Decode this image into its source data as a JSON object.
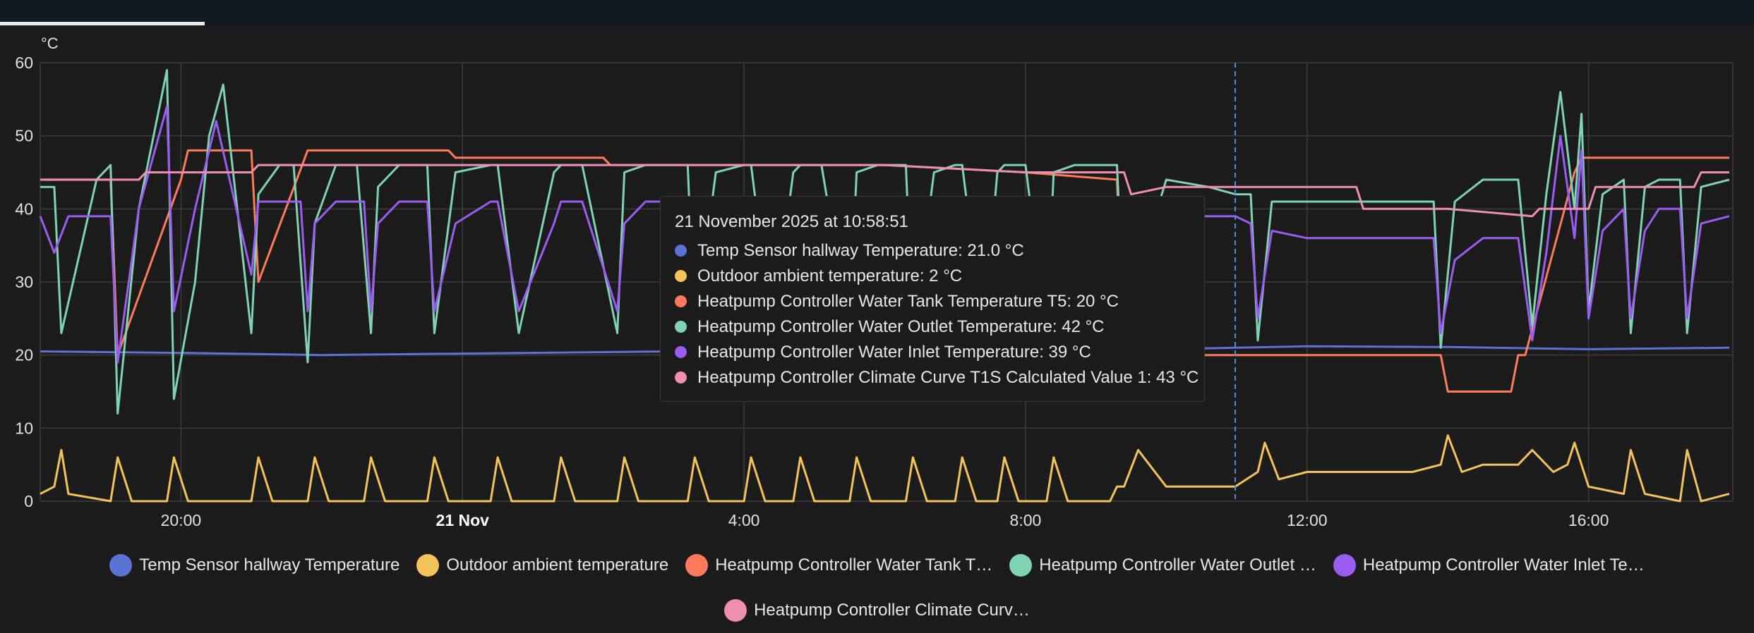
{
  "chart_data": {
    "type": "line",
    "unit": "°C",
    "ylim": [
      0,
      60
    ],
    "yticks": [
      0,
      10,
      20,
      30,
      40,
      50,
      60
    ],
    "x_range_hours": [
      -6.0,
      18.05
    ],
    "xticks": [
      {
        "label": "20:00",
        "h": -4,
        "bold": false
      },
      {
        "label": "21 Nov",
        "h": 0,
        "bold": true
      },
      {
        "label": "4:00",
        "h": 4,
        "bold": false
      },
      {
        "label": "8:00",
        "h": 8,
        "bold": false
      },
      {
        "label": "12:00",
        "h": 12,
        "bold": false
      },
      {
        "label": "16:00",
        "h": 16,
        "bold": false
      }
    ],
    "grid": true,
    "cursor_h": 10.98,
    "series": [
      {
        "name": "Temp Sensor hallway Temperature",
        "color": "#5b73d4",
        "x": [
          -6.0,
          -4.0,
          -2.0,
          0.0,
          2.0,
          4.0,
          6.0,
          8.0,
          10.0,
          11.0,
          12.0,
          14.0,
          16.0,
          18.0
        ],
        "y": [
          20.5,
          20.3,
          20.0,
          20.2,
          20.4,
          20.6,
          20.6,
          20.7,
          20.8,
          21.0,
          21.2,
          21.1,
          20.8,
          21.0
        ]
      },
      {
        "name": "Outdoor ambient temperature",
        "color": "#f4c25b",
        "x": [
          -6.0,
          -5.8,
          -5.7,
          -5.6,
          -5.0,
          -4.9,
          -4.7,
          -4.2,
          -4.1,
          -3.9,
          -3.0,
          -2.9,
          -2.7,
          -2.2,
          -2.1,
          -1.9,
          -1.4,
          -1.3,
          -1.1,
          -0.5,
          -0.4,
          -0.2,
          0.4,
          0.5,
          0.7,
          1.3,
          1.4,
          1.6,
          2.2,
          2.3,
          2.5,
          3.2,
          3.3,
          3.5,
          4.0,
          4.1,
          4.3,
          4.7,
          4.8,
          5.0,
          5.5,
          5.6,
          5.8,
          6.3,
          6.4,
          6.6,
          7.0,
          7.1,
          7.3,
          7.6,
          7.7,
          7.9,
          8.3,
          8.4,
          8.6,
          9.2,
          9.3,
          9.4,
          9.6,
          10.0,
          10.6,
          10.98,
          11.3,
          11.4,
          11.6,
          12.0,
          13.0,
          13.5,
          13.9,
          14.0,
          14.2,
          14.5,
          15.0,
          15.2,
          15.5,
          15.7,
          15.8,
          16.0,
          16.5,
          16.6,
          16.8,
          17.3,
          17.4,
          17.6,
          18.0
        ],
        "y": [
          1,
          2,
          7,
          1,
          0,
          6,
          0,
          0,
          6,
          0,
          0,
          6,
          0,
          0,
          6,
          0,
          0,
          6,
          0,
          0,
          6,
          0,
          0,
          6,
          0,
          0,
          6,
          0,
          0,
          6,
          0,
          0,
          6,
          0,
          0,
          6,
          0,
          0,
          6,
          0,
          0,
          6,
          0,
          0,
          6,
          0,
          0,
          6,
          0,
          0,
          6,
          0,
          0,
          6,
          0,
          0,
          2,
          2,
          7,
          2,
          2,
          2,
          4,
          8,
          3,
          4,
          4,
          4,
          5,
          9,
          4,
          5,
          5,
          7,
          4,
          5,
          8,
          2,
          1,
          7,
          1,
          0,
          7,
          0,
          1
        ]
      },
      {
        "name": "Heatpump Controller Water Tank Temperature T5",
        "color": "#ff7a5c",
        "x": [
          -6.0,
          -5.0,
          -4.9,
          -4.0,
          -3.9,
          -3.0,
          -2.9,
          -2.2,
          -2.1,
          -0.2,
          -0.1,
          2.0,
          2.1,
          4.0,
          6.0,
          8.0,
          9.3,
          9.4,
          10.0,
          11.0,
          12.0,
          13.0,
          13.9,
          14.0,
          14.9,
          15.0,
          15.1,
          15.8,
          15.9,
          18.0
        ],
        "y": [
          44,
          44,
          20,
          44,
          48,
          48,
          30,
          48,
          48,
          48,
          47,
          47,
          46,
          46,
          46,
          45,
          44,
          20,
          20,
          20,
          20,
          20,
          20,
          15,
          15,
          20,
          20,
          45,
          47,
          47
        ]
      },
      {
        "name": "Heatpump Controller Water Outlet Temperature",
        "color": "#7fd3b2",
        "x": [
          -6.0,
          -5.8,
          -5.7,
          -5.2,
          -5.0,
          -4.9,
          -4.6,
          -4.2,
          -4.1,
          -3.8,
          -3.6,
          -3.4,
          -3.0,
          -2.9,
          -2.6,
          -2.4,
          -2.2,
          -2.1,
          -1.8,
          -1.5,
          -1.3,
          -1.2,
          -0.9,
          -0.5,
          -0.4,
          -0.1,
          0.4,
          0.5,
          0.8,
          1.3,
          1.4,
          1.7,
          2.2,
          2.3,
          2.6,
          3.2,
          3.3,
          3.6,
          4.0,
          4.1,
          4.4,
          4.7,
          4.8,
          5.1,
          5.5,
          5.6,
          5.9,
          6.3,
          6.4,
          6.7,
          7.0,
          7.1,
          7.4,
          7.6,
          7.7,
          8.0,
          8.3,
          8.4,
          8.7,
          9.3,
          9.4,
          10.0,
          10.6,
          10.98,
          11.2,
          11.3,
          11.5,
          12.0,
          13.0,
          13.8,
          13.9,
          14.1,
          14.5,
          15.0,
          15.2,
          15.4,
          15.6,
          15.8,
          15.9,
          16.0,
          16.2,
          16.5,
          16.6,
          16.8,
          17.0,
          17.3,
          17.4,
          17.6,
          18.0
        ],
        "y": [
          43,
          43,
          23,
          44,
          46,
          12,
          40,
          59,
          14,
          30,
          50,
          57,
          23,
          42,
          46,
          46,
          19,
          38,
          46,
          46,
          23,
          43,
          46,
          46,
          23,
          45,
          46,
          46,
          23,
          45,
          46,
          46,
          23,
          45,
          46,
          46,
          23,
          45,
          46,
          46,
          23,
          45,
          46,
          46,
          23,
          45,
          46,
          46,
          23,
          45,
          46,
          46,
          23,
          45,
          46,
          46,
          23,
          45,
          46,
          46,
          25,
          44,
          43,
          42,
          42,
          22,
          41,
          41,
          41,
          41,
          21,
          41,
          44,
          44,
          24,
          42,
          56,
          40,
          53,
          26,
          42,
          44,
          23,
          43,
          44,
          44,
          23,
          43,
          44
        ]
      },
      {
        "name": "Heatpump Controller Water Inlet Temperature",
        "color": "#9b5cf2",
        "x": [
          -6.0,
          -5.8,
          -5.6,
          -5.0,
          -4.9,
          -4.6,
          -4.2,
          -4.1,
          -3.8,
          -3.5,
          -3.0,
          -2.9,
          -2.6,
          -2.3,
          -2.2,
          -2.1,
          -1.8,
          -1.4,
          -1.3,
          -1.2,
          -0.9,
          -0.5,
          -0.4,
          -0.1,
          0.4,
          0.5,
          0.8,
          1.3,
          1.4,
          1.7,
          2.2,
          2.3,
          2.6,
          3.2,
          3.3,
          3.6,
          4.0,
          4.1,
          4.4,
          4.7,
          4.8,
          5.1,
          5.5,
          5.6,
          5.9,
          6.3,
          6.4,
          6.7,
          7.0,
          7.1,
          7.4,
          7.6,
          7.7,
          8.0,
          8.3,
          8.4,
          8.7,
          9.3,
          9.4,
          10.0,
          10.6,
          10.98,
          11.2,
          11.3,
          11.5,
          12.0,
          13.0,
          13.8,
          13.9,
          14.1,
          14.5,
          15.0,
          15.2,
          15.4,
          15.6,
          15.8,
          15.9,
          16.0,
          16.2,
          16.5,
          16.6,
          16.8,
          17.0,
          17.3,
          17.4,
          17.6,
          18.0
        ],
        "y": [
          39,
          34,
          39,
          39,
          19,
          40,
          54,
          26,
          40,
          52,
          31,
          41,
          41,
          41,
          26,
          38,
          41,
          41,
          26,
          38,
          41,
          41,
          26,
          38,
          41,
          41,
          26,
          38,
          41,
          41,
          26,
          38,
          41,
          41,
          26,
          38,
          41,
          41,
          26,
          38,
          41,
          41,
          26,
          38,
          41,
          41,
          26,
          38,
          41,
          41,
          26,
          38,
          41,
          41,
          26,
          38,
          41,
          41,
          27,
          39,
          39,
          39,
          38,
          25,
          37,
          36,
          36,
          36,
          23,
          33,
          36,
          36,
          22,
          34,
          50,
          36,
          48,
          25,
          37,
          40,
          25,
          37,
          40,
          40,
          25,
          38,
          39
        ]
      },
      {
        "name": "Heatpump Controller Climate Curve T1S Calculated Value 1",
        "color": "#ef8fb0",
        "x": [
          -6.0,
          -4.6,
          -4.5,
          -3.0,
          -2.9,
          -2.0,
          0.0,
          2.0,
          4.0,
          6.0,
          8.0,
          9.4,
          9.5,
          10.0,
          11.0,
          12.0,
          12.7,
          12.8,
          14.0,
          15.2,
          15.3,
          16.0,
          16.1,
          17.5,
          17.6,
          18.0
        ],
        "y": [
          44,
          44,
          45,
          45,
          46,
          46,
          46,
          46,
          46,
          46,
          45,
          45,
          42,
          43,
          43,
          43,
          43,
          40,
          40,
          39,
          40,
          40,
          43,
          43,
          45,
          45
        ]
      }
    ]
  },
  "tooltip": {
    "title": "21 November 2025 at 10:58:51",
    "rows": [
      {
        "text": "Temp Sensor hallway Temperature: 21.0 °C",
        "color": "#5b73d4"
      },
      {
        "text": "Outdoor ambient temperature: 2 °C",
        "color": "#f4c25b"
      },
      {
        "text": "Heatpump Controller Water Tank Temperature T5: 20 °C",
        "color": "#ff7a5c"
      },
      {
        "text": "Heatpump Controller Water Outlet Temperature: 42 °C",
        "color": "#7fd3b2"
      },
      {
        "text": "Heatpump Controller Water Inlet Temperature: 39 °C",
        "color": "#9b5cf2"
      },
      {
        "text": "Heatpump Controller Climate Curve T1S Calculated Value 1: 43 °C",
        "color": "#ef8fb0"
      }
    ]
  },
  "legend": {
    "items": [
      {
        "label": "Temp Sensor hallway Temperature",
        "color": "#5b73d4"
      },
      {
        "label": "Outdoor ambient temperature",
        "color": "#f4c25b"
      },
      {
        "label": "Heatpump Controller Water Tank T…",
        "color": "#ff7a5c"
      },
      {
        "label": "Heatpump Controller Water Outlet …",
        "color": "#7fd3b2"
      },
      {
        "label": "Heatpump Controller Water Inlet Te…",
        "color": "#9b5cf2"
      },
      {
        "label": "Heatpump Controller Climate Curv…",
        "color": "#ef8fb0"
      }
    ]
  }
}
